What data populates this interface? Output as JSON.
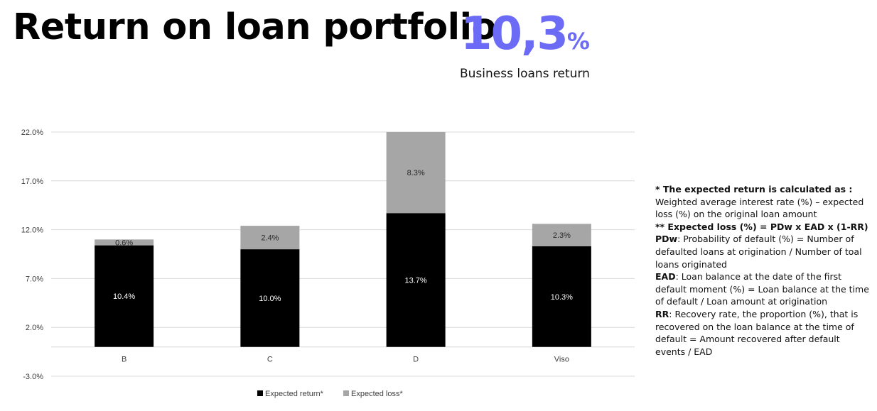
{
  "header": {
    "title": "Return on loan portfolio",
    "kpi_value": "10,3",
    "kpi_unit": "%",
    "kpi_label": "Business loans return"
  },
  "colors": {
    "expected_return": "#000000",
    "expected_loss": "#a6a6a6",
    "accent": "#6b6bf6",
    "grid": "#d9d9d9"
  },
  "chart_data": {
    "type": "bar",
    "stacked": true,
    "categories": [
      "B",
      "C",
      "D",
      "Viso"
    ],
    "series": [
      {
        "name": "Expected return*",
        "values": [
          10.4,
          10.0,
          13.7,
          10.3
        ],
        "labels": [
          "10.4%",
          "10.0%",
          "13.7%",
          "10.3%"
        ]
      },
      {
        "name": "Expected loss*",
        "values": [
          0.6,
          2.4,
          8.3,
          2.3
        ],
        "labels": [
          "0.6%",
          "2.4%",
          "8.3%",
          "2.3%"
        ]
      }
    ],
    "yticks": [
      "-3.0%",
      "2.0%",
      "7.0%",
      "12.0%",
      "17.0%",
      "22.0%"
    ],
    "ytick_values": [
      -3,
      2,
      7,
      12,
      17,
      22
    ],
    "ylim": [
      -3,
      22
    ],
    "grid": true,
    "legend_position": "bottom-center",
    "xlabel": "",
    "ylabel": ""
  },
  "notes": {
    "n1_head": "* The expected return is calculated as :",
    "n1_body": "Weighted average interest rate (%) – expected loss (%) on the original loan amount",
    "n2_head": "** Expected loss (%) = PDw x EAD x (1-RR)",
    "n3_term": "PDw",
    "n3_body": ": Probability of default (%) = Number of defaulted loans at origination / Number of toal loans originated",
    "n4_term": "EAD",
    "n4_body": ": Loan balance at the date of the first default moment (%) = Loan balance at the time of default / Loan amount at origination",
    "n5_term": "RR",
    "n5_body": ": Recovery rate, the proportion (%), that is recovered on the loan balance at the time of default = Amount recovered after default events / EAD"
  }
}
